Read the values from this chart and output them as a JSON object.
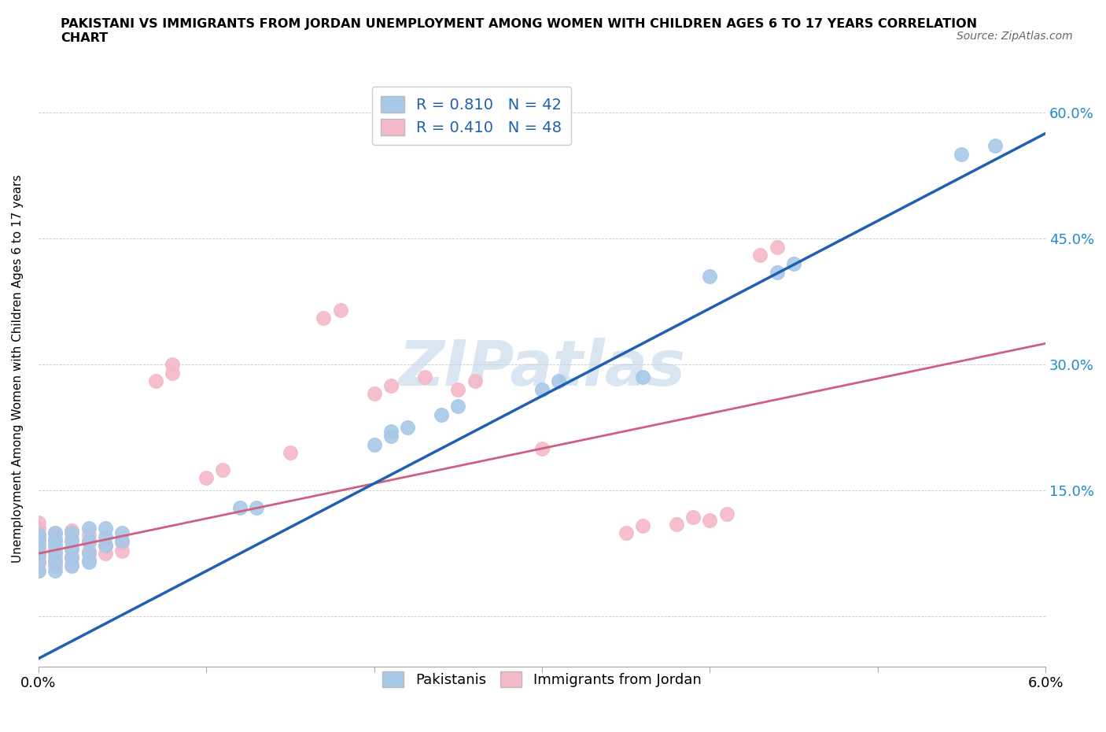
{
  "title": "PAKISTANI VS IMMIGRANTS FROM JORDAN UNEMPLOYMENT AMONG WOMEN WITH CHILDREN AGES 6 TO 17 YEARS CORRELATION\nCHART",
  "source": "Source: ZipAtlas.com",
  "ylabel": "Unemployment Among Women with Children Ages 6 to 17 years",
  "xlim": [
    0.0,
    0.06
  ],
  "ylim": [
    -0.06,
    0.65
  ],
  "xticks": [
    0.0,
    0.01,
    0.02,
    0.03,
    0.04,
    0.05,
    0.06
  ],
  "xticklabels": [
    "0.0%",
    "",
    "",
    "",
    "",
    "",
    "6.0%"
  ],
  "yticks": [
    0.0,
    0.15,
    0.3,
    0.45,
    0.6
  ],
  "yticklabels": [
    "",
    "15.0%",
    "30.0%",
    "45.0%",
    "60.0%"
  ],
  "R_blue": 0.81,
  "N_blue": 42,
  "R_pink": 0.41,
  "N_pink": 48,
  "blue_color": "#a8c8e8",
  "pink_color": "#f5b8c8",
  "blue_line_color": "#2060b0",
  "pink_line_color": "#d06080",
  "watermark": "ZIPatlas",
  "watermark_color": "#c0d4e8",
  "background_color": "#ffffff",
  "blue_line": {
    "x0": 0.0,
    "y0": -0.05,
    "x1": 0.06,
    "y1": 0.575
  },
  "pink_line": {
    "x0": 0.0,
    "y0": 0.075,
    "x1": 0.06,
    "y1": 0.325
  },
  "blue_scatter_x": [
    0.0,
    0.0,
    0.0,
    0.0,
    0.0,
    0.0,
    0.001,
    0.001,
    0.001,
    0.001,
    0.001,
    0.001,
    0.002,
    0.002,
    0.002,
    0.002,
    0.002,
    0.003,
    0.003,
    0.003,
    0.003,
    0.004,
    0.004,
    0.004,
    0.005,
    0.005,
    0.012,
    0.013,
    0.02,
    0.021,
    0.021,
    0.022,
    0.024,
    0.025,
    0.03,
    0.031,
    0.036,
    0.04,
    0.044,
    0.045,
    0.055,
    0.057
  ],
  "blue_scatter_y": [
    0.055,
    0.065,
    0.075,
    0.085,
    0.092,
    0.098,
    0.055,
    0.065,
    0.075,
    0.085,
    0.092,
    0.1,
    0.06,
    0.07,
    0.08,
    0.09,
    0.1,
    0.065,
    0.075,
    0.09,
    0.105,
    0.085,
    0.095,
    0.105,
    0.09,
    0.1,
    0.13,
    0.13,
    0.205,
    0.215,
    0.22,
    0.225,
    0.24,
    0.25,
    0.27,
    0.28,
    0.285,
    0.405,
    0.41,
    0.42,
    0.55,
    0.56
  ],
  "pink_scatter_x": [
    0.0,
    0.0,
    0.0,
    0.0,
    0.0,
    0.0,
    0.0,
    0.0,
    0.001,
    0.001,
    0.001,
    0.001,
    0.001,
    0.002,
    0.002,
    0.002,
    0.002,
    0.002,
    0.003,
    0.003,
    0.003,
    0.003,
    0.004,
    0.004,
    0.005,
    0.005,
    0.007,
    0.008,
    0.008,
    0.01,
    0.011,
    0.015,
    0.017,
    0.018,
    0.02,
    0.021,
    0.023,
    0.025,
    0.026,
    0.03,
    0.035,
    0.036,
    0.038,
    0.039,
    0.04,
    0.041,
    0.043,
    0.044
  ],
  "pink_scatter_y": [
    0.055,
    0.065,
    0.072,
    0.08,
    0.088,
    0.095,
    0.105,
    0.112,
    0.06,
    0.07,
    0.08,
    0.09,
    0.1,
    0.062,
    0.072,
    0.082,
    0.092,
    0.102,
    0.068,
    0.078,
    0.088,
    0.098,
    0.075,
    0.085,
    0.078,
    0.088,
    0.28,
    0.29,
    0.3,
    0.165,
    0.175,
    0.195,
    0.355,
    0.365,
    0.265,
    0.275,
    0.285,
    0.27,
    0.28,
    0.2,
    0.1,
    0.108,
    0.11,
    0.118,
    0.115,
    0.122,
    0.43,
    0.44
  ]
}
